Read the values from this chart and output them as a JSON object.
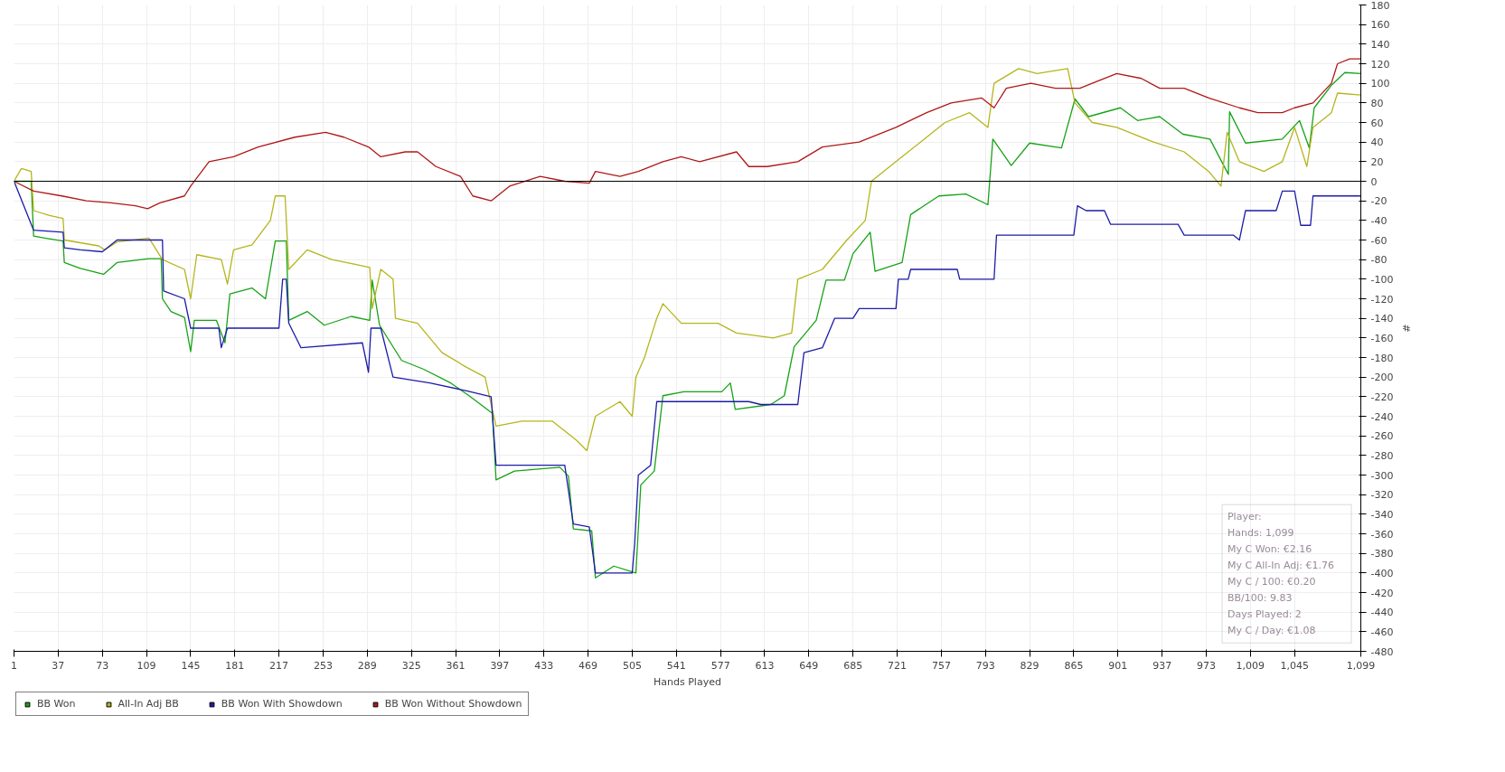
{
  "chart_data": {
    "type": "line",
    "xlabel": "Hands Played",
    "ylabel": "#",
    "xlim": [
      1,
      1099
    ],
    "ylim": [
      -480,
      180
    ],
    "xticks": [
      1,
      37,
      73,
      109,
      145,
      181,
      217,
      253,
      289,
      325,
      361,
      397,
      433,
      469,
      505,
      541,
      577,
      613,
      649,
      685,
      721,
      757,
      793,
      829,
      865,
      901,
      937,
      973,
      {
        "value": 1009,
        "label": "1,009"
      },
      {
        "value": 1045,
        "label": "1,045"
      },
      {
        "value": 1099,
        "label": "1,099"
      }
    ],
    "yticks": [
      -480,
      -460,
      -440,
      -420,
      -400,
      -380,
      -360,
      -340,
      -320,
      -300,
      -280,
      -260,
      -240,
      -220,
      -200,
      -180,
      -160,
      -140,
      -120,
      -100,
      -80,
      -60,
      -40,
      -20,
      0,
      20,
      40,
      60,
      80,
      100,
      120,
      140,
      160,
      180
    ],
    "grid": true,
    "legend": "bottom",
    "line_style": "solid",
    "marker": "none",
    "ref_lines": [
      {
        "axis": "y",
        "value": 0,
        "color": "#000000"
      }
    ],
    "annotations": [
      "Player:",
      "Hands: 1,099",
      "My C Won: €2.16",
      "My C All-In Adj: €1.76",
      "My C / 100: €0.20",
      "BB/100: 9.83",
      "Days Played: 2",
      "My C / Day: €1.08"
    ],
    "series": [
      {
        "name": "BB Won",
        "color": "#16a316",
        "x": [
          1,
          11,
          15,
          17,
          26,
          41,
          42,
          55,
          74,
          85,
          111,
          121,
          122,
          129,
          140,
          145,
          148,
          166,
          173,
          177,
          195,
          206,
          214,
          223,
          225,
          240,
          254,
          276,
          291,
          293,
          299,
          317,
          335,
          357,
          372,
          391,
          394,
          409,
          446,
          453,
          457,
          472,
          475,
          490,
          508,
          512,
          523,
          530,
          547,
          578,
          585,
          589,
          618,
          629,
          637,
          655,
          663,
          678,
          685,
          699,
          703,
          725,
          732,
          755,
          777,
          795,
          799,
          814,
          829,
          855,
          866,
          877,
          903,
          917,
          935,
          954,
          976,
          991,
          992,
          1005,
          1035,
          1049,
          1057,
          1061,
          1075,
          1086,
          1099
        ],
        "values": [
          0,
          0,
          0,
          -56,
          -58,
          -61,
          -83,
          -89,
          -95,
          -83,
          -79,
          -79,
          -120,
          -133,
          -139,
          -174,
          -142,
          -142,
          -165,
          -115,
          -109,
          -120,
          -61,
          -61,
          -142,
          -133,
          -147,
          -138,
          -142,
          -101,
          -147,
          -183,
          -192,
          -206,
          -219,
          -237,
          -305,
          -296,
          -292,
          -301,
          -355,
          -357,
          -405,
          -393,
          -400,
          -310,
          -296,
          -219,
          -215,
          -215,
          -206,
          -233,
          -228,
          -219,
          -169,
          -142,
          -101,
          -101,
          -74,
          -52,
          -92,
          -83,
          -34,
          -15,
          -13,
          -24,
          43,
          16,
          39,
          34,
          84,
          66,
          75,
          62,
          66,
          48,
          43,
          7,
          71,
          39,
          43,
          62,
          34,
          75,
          98,
          111,
          110
        ]
      },
      {
        "name": "All-In Adj BB",
        "color": "#b5b51c",
        "x": [
          1,
          7,
          15,
          17,
          30,
          41,
          42,
          70,
          75,
          85,
          111,
          122,
          140,
          145,
          150,
          170,
          175,
          180,
          195,
          210,
          214,
          222,
          225,
          240,
          260,
          280,
          291,
          293,
          300,
          310,
          312,
          330,
          350,
          370,
          385,
          394,
          415,
          440,
          460,
          468,
          475,
          495,
          505,
          508,
          515,
          525,
          530,
          545,
          575,
          590,
          620,
          635,
          640,
          660,
          680,
          695,
          700,
          720,
          740,
          760,
          780,
          795,
          800,
          820,
          835,
          860,
          866,
          880,
          900,
          930,
          955,
          975,
          985,
          990,
          1000,
          1020,
          1035,
          1045,
          1055,
          1060,
          1075,
          1080,
          1099
        ],
        "values": [
          0,
          13,
          10,
          -30,
          -35,
          -38,
          -60,
          -66,
          -70,
          -62,
          -58,
          -80,
          -90,
          -120,
          -75,
          -80,
          -105,
          -70,
          -65,
          -40,
          -15,
          -15,
          -90,
          -70,
          -80,
          -85,
          -88,
          -130,
          -90,
          -100,
          -140,
          -145,
          -175,
          -190,
          -200,
          -250,
          -245,
          -245,
          -265,
          -275,
          -240,
          -225,
          -240,
          -200,
          -180,
          -140,
          -125,
          -145,
          -145,
          -155,
          -160,
          -155,
          -100,
          -90,
          -60,
          -40,
          0,
          20,
          40,
          60,
          70,
          55,
          100,
          115,
          110,
          115,
          80,
          60,
          55,
          40,
          30,
          10,
          -5,
          50,
          20,
          10,
          20,
          55,
          15,
          55,
          70,
          90,
          88
        ]
      },
      {
        "name": "BB Won With Showdown",
        "color": "#1c1ca8",
        "x": [
          1,
          17,
          41,
          42,
          55,
          73,
          85,
          122,
          123,
          140,
          145,
          168,
          170,
          175,
          217,
          220,
          223,
          225,
          235,
          285,
          290,
          292,
          300,
          310,
          340,
          370,
          390,
          394,
          450,
          457,
          470,
          475,
          505,
          507,
          510,
          520,
          525,
          530,
          600,
          610,
          640,
          645,
          660,
          670,
          685,
          690,
          720,
          722,
          730,
          732,
          770,
          772,
          800,
          802,
          865,
          868,
          875,
          890,
          895,
          950,
          955,
          995,
          1000,
          1005,
          1030,
          1035,
          1045,
          1050,
          1058,
          1060,
          1099
        ],
        "values": [
          0,
          -50,
          -52,
          -68,
          -70,
          -72,
          -60,
          -60,
          -112,
          -120,
          -150,
          -150,
          -170,
          -150,
          -150,
          -100,
          -100,
          -145,
          -170,
          -165,
          -195,
          -150,
          -150,
          -200,
          -206,
          -214,
          -220,
          -290,
          -290,
          -350,
          -353,
          -400,
          -400,
          -370,
          -300,
          -290,
          -225,
          -225,
          -225,
          -228,
          -228,
          -175,
          -170,
          -140,
          -140,
          -130,
          -130,
          -100,
          -100,
          -90,
          -90,
          -100,
          -100,
          -55,
          -55,
          -25,
          -30,
          -30,
          -44,
          -44,
          -55,
          -55,
          -60,
          -30,
          -30,
          -10,
          -10,
          -45,
          -45,
          -15,
          -15
        ]
      },
      {
        "name": "BB Won Without Showdown",
        "color": "#b01818",
        "x": [
          1,
          17,
          40,
          60,
          80,
          100,
          110,
          120,
          140,
          145,
          160,
          180,
          200,
          230,
          255,
          270,
          290,
          300,
          320,
          330,
          345,
          365,
          375,
          390,
          405,
          430,
          450,
          470,
          475,
          495,
          510,
          530,
          545,
          560,
          590,
          600,
          615,
          640,
          660,
          690,
          720,
          745,
          765,
          790,
          800,
          810,
          830,
          850,
          870,
          880,
          900,
          920,
          935,
          955,
          975,
          1000,
          1015,
          1035,
          1045,
          1060,
          1075,
          1080,
          1090,
          1099
        ],
        "values": [
          0,
          -10,
          -15,
          -20,
          -22,
          -25,
          -28,
          -22,
          -15,
          -5,
          20,
          25,
          35,
          45,
          50,
          45,
          35,
          25,
          30,
          30,
          15,
          5,
          -15,
          -20,
          -5,
          5,
          0,
          -2,
          10,
          5,
          10,
          20,
          25,
          20,
          30,
          15,
          15,
          20,
          35,
          40,
          55,
          70,
          80,
          85,
          75,
          95,
          100,
          95,
          95,
          100,
          110,
          105,
          95,
          95,
          85,
          75,
          70,
          70,
          75,
          80,
          100,
          120,
          125,
          125
        ]
      }
    ]
  }
}
